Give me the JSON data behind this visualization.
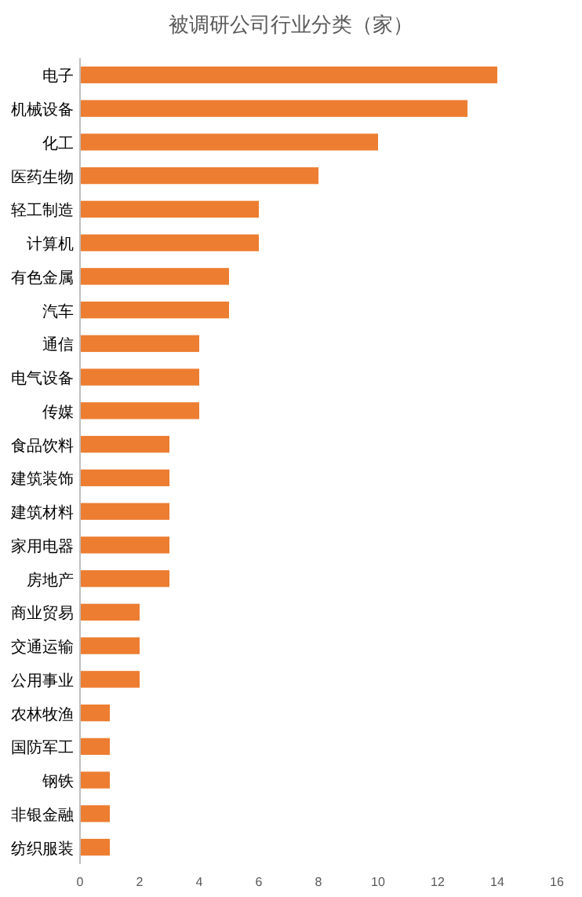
{
  "chart_data": {
    "type": "bar",
    "orientation": "horizontal",
    "title": "被调研公司行业分类（家）",
    "categories": [
      "电子",
      "机械设备",
      "化工",
      "医药生物",
      "轻工制造",
      "计算机",
      "有色金属",
      "汽车",
      "通信",
      "电气设备",
      "传媒",
      "食品饮料",
      "建筑装饰",
      "建筑材料",
      "家用电器",
      "房地产",
      "商业贸易",
      "交通运输",
      "公用事业",
      "农林牧渔",
      "国防军工",
      "钢铁",
      "非银金融",
      "纺织服装"
    ],
    "values": [
      14,
      13,
      10,
      8,
      6,
      6,
      5,
      5,
      4,
      4,
      4,
      3,
      3,
      3,
      3,
      3,
      2,
      2,
      2,
      1,
      1,
      1,
      1,
      1
    ],
    "color": "#ed7d31",
    "xlim": [
      0,
      16
    ],
    "xticks": [
      0,
      2,
      4,
      6,
      8,
      10,
      12,
      14,
      16
    ]
  }
}
